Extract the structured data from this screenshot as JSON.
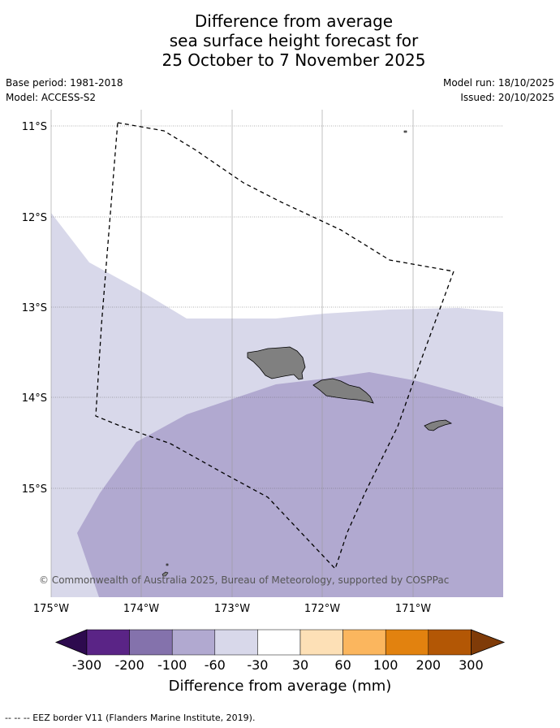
{
  "title": {
    "line1": "Difference from average",
    "line2": "sea surface height forecast for",
    "line3": "25 October to 7 November 2025"
  },
  "meta": {
    "base_period": "Base period: 1981-2018",
    "model": "Model: ACCESS-S2",
    "model_run": "Model run: 18/10/2025",
    "issued": "Issued: 20/10/2025"
  },
  "axes": {
    "lat_labels": [
      "11°S",
      "12°S",
      "13°S",
      "14°S",
      "15°S"
    ],
    "lon_labels": [
      "175°W",
      "174°W",
      "173°W",
      "172°W",
      "171°W"
    ]
  },
  "copyright": "© Commonwealth of Australia 2025, Bureau of Meteorology, supported by COSPPac",
  "colorbar": {
    "title": "Difference from average (mm)",
    "ticks": [
      "-300",
      "-200",
      "-100",
      "-60",
      "-30",
      "30",
      "60",
      "100",
      "200",
      "300"
    ],
    "colors": [
      "#2d0a4e",
      "#5a2486",
      "#8472ac",
      "#b1a9d0",
      "#d8d8ea",
      "#ffffff",
      "#fde0b6",
      "#fbb65e",
      "#e2820f",
      "#b35705",
      "#7f3b08"
    ]
  },
  "map_fill": {
    "band_minus_30_to_minus_60": "#d8d8ea",
    "band_minus_60_to_minus_100": "#b1a9d0",
    "land": "#808080"
  },
  "footnote": "--  --  -- EEZ border V11 (Flanders Marine Institute, 2019)."
}
